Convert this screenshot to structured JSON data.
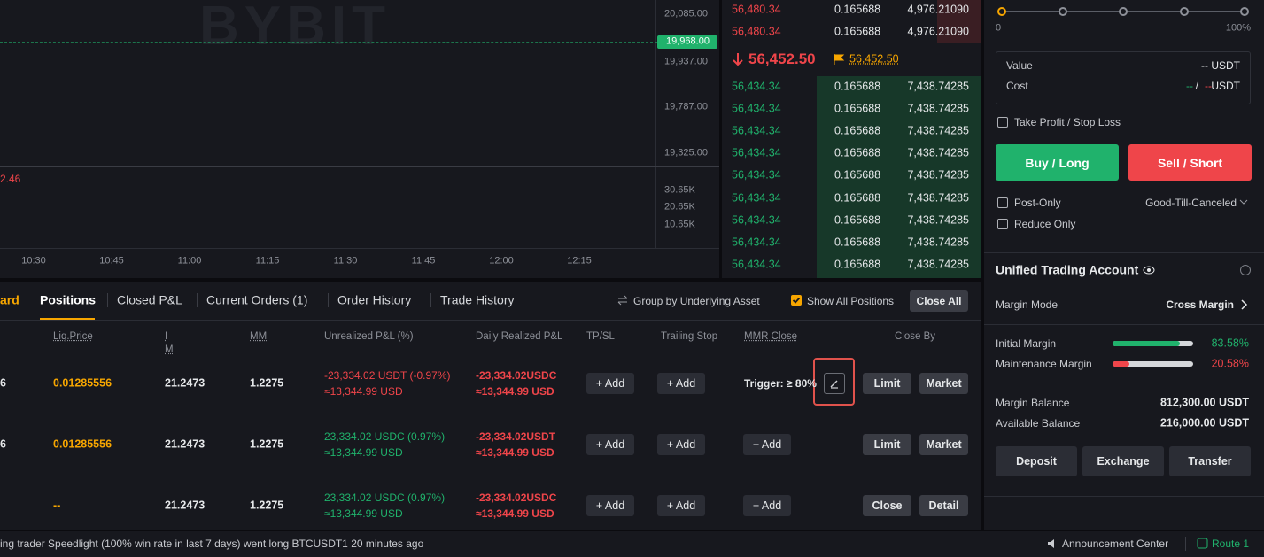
{
  "chart": {
    "watermark": "BYBIT",
    "price_ticks": [
      "20,085.00",
      "19,937.00",
      "19,787.00",
      "19,325.00"
    ],
    "last_price": "19,968.00",
    "volume_value": "2.46",
    "volume_ticks": [
      "30.65K",
      "20.65K",
      "10.65K"
    ],
    "time_ticks": [
      "10:30",
      "10:45",
      "11:00",
      "11:15",
      "11:30",
      "11:45",
      "12:00",
      "12:15"
    ]
  },
  "order_book": {
    "asks": [
      {
        "price": "56,480.34",
        "size": "0.165688",
        "total": "4,976.21090"
      },
      {
        "price": "56,480.34",
        "size": "0.165688",
        "total": "4,976.21090"
      }
    ],
    "last_price": "56,452.50",
    "mark_price": "56,452.50",
    "bids": [
      {
        "price": "56,434.34",
        "size": "0.165688",
        "total": "7,438.74285"
      },
      {
        "price": "56,434.34",
        "size": "0.165688",
        "total": "7,438.74285"
      },
      {
        "price": "56,434.34",
        "size": "0.165688",
        "total": "7,438.74285"
      },
      {
        "price": "56,434.34",
        "size": "0.165688",
        "total": "7,438.74285"
      },
      {
        "price": "56,434.34",
        "size": "0.165688",
        "total": "7,438.74285"
      },
      {
        "price": "56,434.34",
        "size": "0.165688",
        "total": "7,438.74285"
      },
      {
        "price": "56,434.34",
        "size": "0.165688",
        "total": "7,438.74285"
      },
      {
        "price": "56,434.34",
        "size": "0.165688",
        "total": "7,438.74285"
      },
      {
        "price": "56,434.34",
        "size": "0.165688",
        "total": "7,438.74285"
      }
    ]
  },
  "order_form": {
    "slider_min": "0",
    "slider_max": "100%",
    "value_label": "Value",
    "value_text": "-- USDT",
    "cost_label": "Cost",
    "cost_buy": "--",
    "cost_sep": "/",
    "cost_sell": "--",
    "cost_unit": "USDT",
    "tpsl": "Take Profit / Stop Loss",
    "buy": "Buy / Long",
    "sell": "Sell / Short",
    "post_only": "Post-Only",
    "time_in_force": "Good-Till-Canceled",
    "reduce_only": "Reduce Only"
  },
  "account": {
    "title": "Unified Trading Account",
    "margin_mode_label": "Margin Mode",
    "margin_mode": "Cross Margin",
    "initial_margin": {
      "label": "Initial Margin",
      "value": 83.58,
      "value_label": "83.58%"
    },
    "maintenance_margin": {
      "label": "Maintenance Margin",
      "value": 20.58,
      "value_label": "20.58%"
    },
    "margin_balance_label": "Margin Balance",
    "margin_balance": "812,300.00 USDT",
    "available_balance_label": "Available Balance",
    "available_balance": "216,000.00 USDT",
    "buttons": [
      "Deposit",
      "Exchange",
      "Transfer"
    ]
  },
  "positions": {
    "tabs": [
      "ard",
      "Positions",
      "Closed P&L",
      "Current Orders (1)",
      "Order History",
      "Trade History"
    ],
    "group_by": "Group by Underlying Asset",
    "show_all": "Show All Positions",
    "close_all": "Close All",
    "columns": [
      "Liq.Price",
      "IM",
      "MM",
      "Unrealized P&L (%)",
      "Daily Realized P&L",
      "TP/SL",
      "Trailing Stop",
      "MMR Close",
      "Close By"
    ],
    "rows": [
      {
        "size": "6",
        "liq_price": "0.01285556",
        "im": "21.2473",
        "mm": "1.2275",
        "unrealized": "-23,334.02 USDT (-0.97%)",
        "unrealized_usd": "≈13,344.99 USD",
        "daily": "-23,334.02USDC",
        "daily_usd": "≈13,344.99 USD",
        "tpsl": "+ Add",
        "trailing": "+ Add",
        "mmr_trigger": "Trigger: ≥ 80%",
        "close_by": [
          "Limit",
          "Market"
        ]
      },
      {
        "size": "6",
        "liq_price": "0.01285556",
        "im": "21.2473",
        "mm": "1.2275",
        "unrealized": "23,334.02 USDC (0.97%)",
        "unrealized_usd": "≈13,344.99 USD",
        "daily": "-23,334.02USDT",
        "daily_usd": "≈13,344.99 USD",
        "tpsl": "+ Add",
        "trailing": "+ Add",
        "mmr": "+ Add",
        "close_by": [
          "Limit",
          "Market"
        ]
      },
      {
        "liq_price": "--",
        "im": "21.2473",
        "mm": "1.2275",
        "unrealized": "23,334.02 USDC (0.97%)",
        "unrealized_usd": "≈13,344.99 USD",
        "daily": "-23,334.02USDC",
        "daily_usd": "≈13,344.99 USD",
        "tpsl": "+ Add",
        "trailing": "+ Add",
        "mmr": "+ Add",
        "close_by": [
          "Close",
          "Detail"
        ]
      }
    ]
  },
  "ticker": {
    "message": "ing trader Speedlight (100% win rate in last 7 days) went long BTCUSDT1 20 minutes ago",
    "announcement": "Announcement Center",
    "route": "Route 1"
  }
}
